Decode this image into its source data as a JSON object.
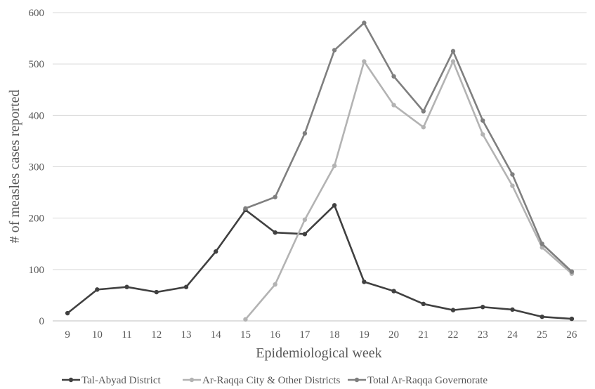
{
  "chart_data": {
    "type": "line",
    "title": "",
    "xlabel": "Epidemiological week",
    "ylabel": "# of measles cases reported",
    "categories": [
      "9",
      "10",
      "11",
      "12",
      "13",
      "14",
      "15",
      "16",
      "17",
      "18",
      "19",
      "20",
      "21",
      "22",
      "23",
      "24",
      "25",
      "26"
    ],
    "ylim": [
      0,
      600
    ],
    "yticks": [
      0,
      100,
      200,
      300,
      400,
      500,
      600
    ],
    "grid": true,
    "legend_position": "bottom",
    "series": [
      {
        "name": "Tal-Abyad District",
        "color": "#404040",
        "values": [
          15,
          61,
          66,
          56,
          66,
          135,
          216,
          172,
          169,
          225,
          76,
          58,
          33,
          21,
          27,
          22,
          8,
          4
        ]
      },
      {
        "name": "Ar-Raqqa City & Other Districts",
        "color": "#b3b3b3",
        "values": [
          null,
          null,
          null,
          null,
          null,
          null,
          3,
          71,
          197,
          302,
          505,
          420,
          377,
          505,
          363,
          263,
          143,
          92
        ]
      },
      {
        "name": "Total Ar-Raqqa Governorate",
        "color": "#7f7f7f",
        "values": [
          null,
          null,
          null,
          null,
          null,
          null,
          219,
          241,
          365,
          527,
          580,
          476,
          408,
          525,
          390,
          285,
          150,
          96
        ]
      }
    ]
  }
}
